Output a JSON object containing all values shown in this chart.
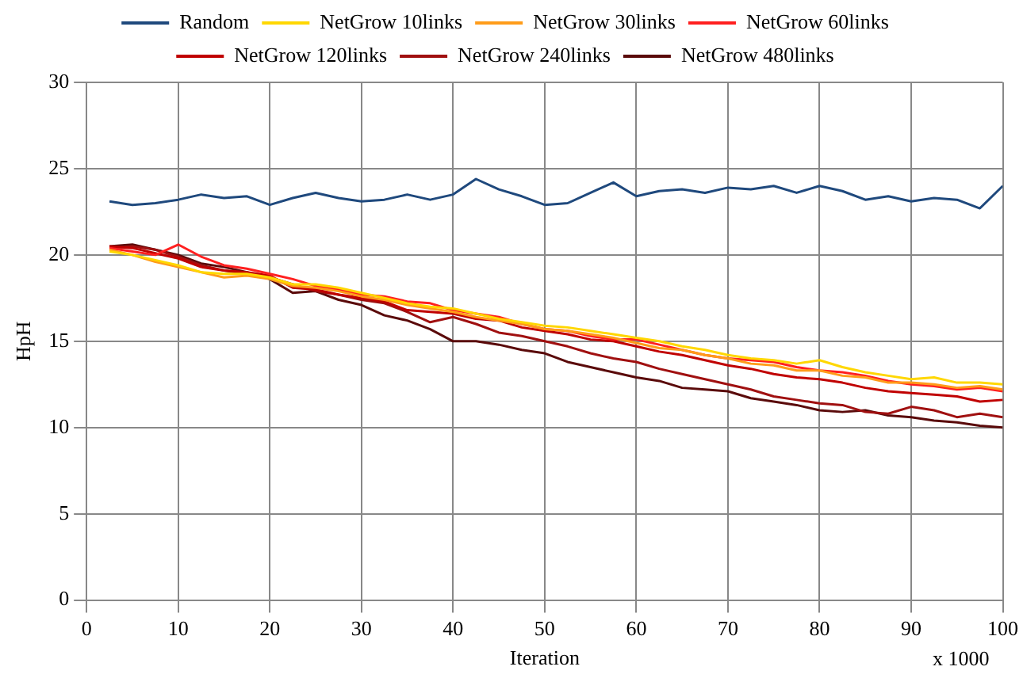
{
  "chart_data": {
    "type": "line",
    "xlabel": "Iteration",
    "annotations": [
      "x 1000"
    ],
    "ylabel": "HpH",
    "xlim": [
      0,
      100
    ],
    "xticks": [
      0,
      10,
      20,
      30,
      40,
      50,
      60,
      70,
      80,
      90,
      100
    ],
    "ylim": [
      0,
      30
    ],
    "yticks": [
      0,
      5,
      10,
      15,
      20,
      25,
      30
    ],
    "grid": true,
    "legend": "top",
    "marker": "none",
    "line_style": "solid",
    "x": [
      2.5,
      5,
      7.5,
      10,
      12.5,
      15,
      17.5,
      20,
      22.5,
      25,
      27.5,
      30,
      32.5,
      35,
      37.5,
      40,
      42.5,
      45,
      47.5,
      50,
      52.5,
      55,
      57.5,
      60,
      62.5,
      65,
      67.5,
      70,
      72.5,
      75,
      77.5,
      80,
      82.5,
      85,
      87.5,
      90,
      92.5,
      95,
      97.5,
      100
    ],
    "series": [
      {
        "name": "Random",
        "color": "#1f497d",
        "values": [
          23.1,
          22.9,
          23.0,
          23.2,
          23.5,
          23.3,
          23.4,
          22.9,
          23.3,
          23.6,
          23.3,
          23.1,
          23.2,
          23.5,
          23.2,
          23.5,
          24.4,
          23.8,
          23.4,
          22.9,
          23.0,
          23.6,
          24.2,
          23.4,
          23.7,
          23.8,
          23.6,
          23.9,
          23.8,
          24.0,
          23.6,
          24.0,
          23.7,
          23.2,
          23.4,
          23.1,
          23.3,
          23.2,
          22.7,
          24.0
        ]
      },
      {
        "name": "NetGrow 10links",
        "color": "#ffd700",
        "values": [
          20.2,
          20.0,
          19.7,
          19.4,
          19.0,
          18.9,
          18.9,
          18.7,
          18.3,
          18.3,
          18.1,
          17.8,
          17.5,
          17.2,
          17.0,
          16.9,
          16.6,
          16.3,
          16.1,
          15.9,
          15.8,
          15.6,
          15.4,
          15.2,
          15.0,
          14.7,
          14.5,
          14.2,
          14.0,
          13.9,
          13.7,
          13.9,
          13.5,
          13.2,
          13.0,
          12.8,
          12.9,
          12.6,
          12.6,
          12.5
        ]
      },
      {
        "name": "NetGrow 30links",
        "color": "#ff9c1a",
        "values": [
          20.3,
          20.0,
          19.6,
          19.3,
          19.0,
          18.7,
          18.8,
          18.6,
          18.2,
          18.1,
          17.9,
          17.6,
          17.4,
          17.1,
          16.9,
          16.7,
          16.4,
          16.2,
          16.0,
          15.7,
          15.6,
          15.4,
          15.2,
          14.9,
          14.6,
          14.5,
          14.2,
          14.0,
          13.7,
          13.6,
          13.3,
          13.3,
          13.0,
          12.9,
          12.6,
          12.6,
          12.5,
          12.3,
          12.4,
          12.2
        ]
      },
      {
        "name": "NetGrow 60links",
        "color": "#ff2020",
        "values": [
          20.4,
          20.2,
          20.0,
          20.6,
          19.9,
          19.4,
          19.2,
          18.9,
          18.6,
          18.2,
          18.0,
          17.7,
          17.6,
          17.3,
          17.2,
          16.8,
          16.6,
          16.4,
          16.0,
          15.7,
          15.6,
          15.3,
          15.1,
          15.1,
          14.8,
          14.5,
          14.2,
          14.0,
          13.9,
          13.8,
          13.5,
          13.3,
          13.2,
          13.0,
          12.7,
          12.5,
          12.4,
          12.2,
          12.3,
          12.1
        ]
      },
      {
        "name": "NetGrow 120links",
        "color": "#c00000",
        "values": [
          20.5,
          20.4,
          20.1,
          19.8,
          19.3,
          19.1,
          19.0,
          18.8,
          18.1,
          18.0,
          17.7,
          17.5,
          17.3,
          16.8,
          16.7,
          16.6,
          16.3,
          16.2,
          15.8,
          15.6,
          15.4,
          15.1,
          15.0,
          14.7,
          14.4,
          14.2,
          13.9,
          13.6,
          13.4,
          13.1,
          12.9,
          12.8,
          12.6,
          12.3,
          12.1,
          12.0,
          11.9,
          11.8,
          11.5,
          11.6
        ]
      },
      {
        "name": "NetGrow 240links",
        "color": "#a01010",
        "values": [
          20.4,
          20.5,
          20.3,
          19.9,
          19.4,
          19.1,
          18.9,
          18.7,
          18.3,
          17.9,
          17.7,
          17.4,
          17.2,
          16.7,
          16.1,
          16.4,
          16.0,
          15.5,
          15.3,
          15.0,
          14.7,
          14.3,
          14.0,
          13.8,
          13.4,
          13.1,
          12.8,
          12.5,
          12.2,
          11.8,
          11.6,
          11.4,
          11.3,
          10.9,
          10.8,
          11.2,
          11.0,
          10.6,
          10.8,
          10.6
        ]
      },
      {
        "name": "NetGrow 480links",
        "color": "#5a0a0a",
        "values": [
          20.5,
          20.6,
          20.3,
          20.0,
          19.5,
          19.3,
          19.0,
          18.6,
          17.8,
          17.9,
          17.4,
          17.1,
          16.5,
          16.2,
          15.7,
          15.0,
          15.0,
          14.8,
          14.5,
          14.3,
          13.8,
          13.5,
          13.2,
          12.9,
          12.7,
          12.3,
          12.2,
          12.1,
          11.7,
          11.5,
          11.3,
          11.0,
          10.9,
          11.0,
          10.7,
          10.6,
          10.4,
          10.3,
          10.1,
          10.0
        ]
      }
    ]
  }
}
